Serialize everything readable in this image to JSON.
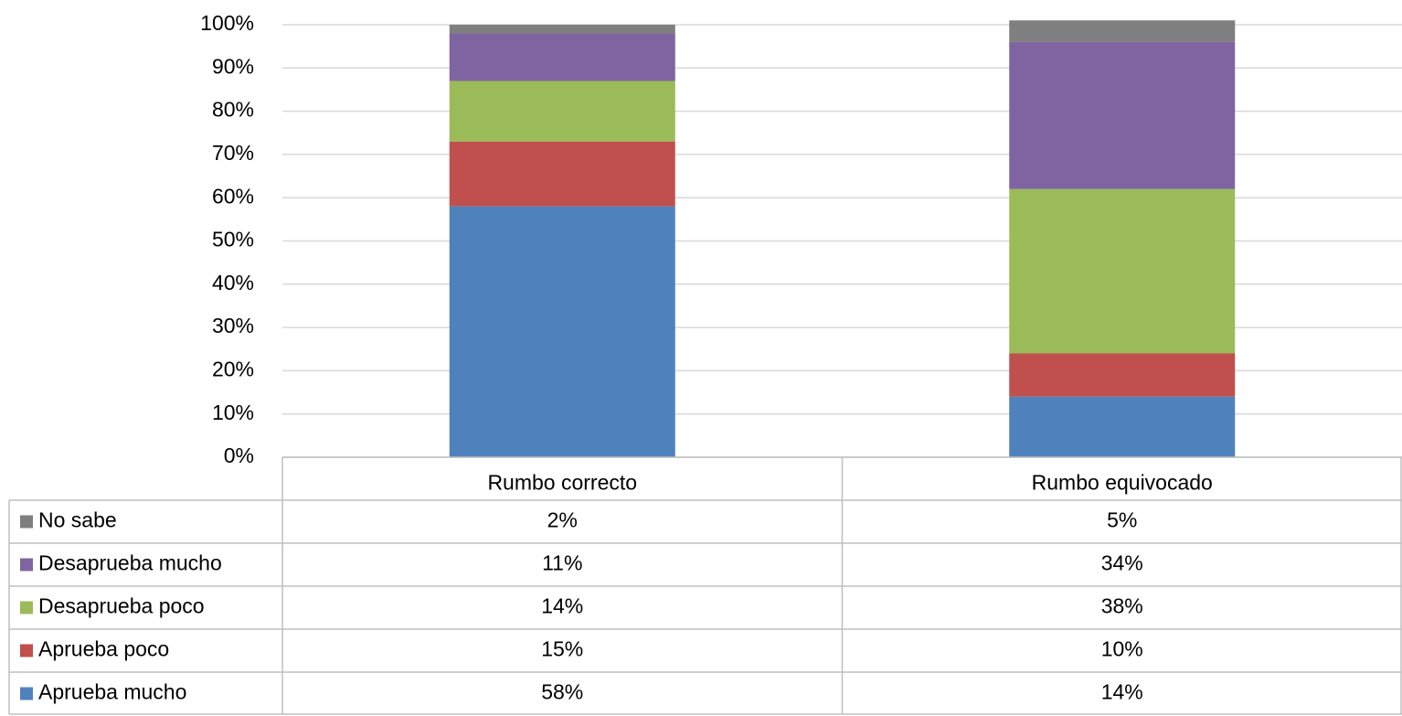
{
  "chart_data": {
    "type": "bar",
    "categories": [
      "Rumbo correcto",
      "Rumbo equivocado"
    ],
    "series": [
      {
        "name": "Aprueba mucho",
        "color": "#4f81bd",
        "values": [
          58,
          14
        ],
        "value_labels": [
          "58%",
          "14%"
        ]
      },
      {
        "name": "Aprueba poco",
        "color": "#c0504d",
        "values": [
          15,
          10
        ],
        "value_labels": [
          "15%",
          "10%"
        ]
      },
      {
        "name": "Desaprueba poco",
        "color": "#9bbb59",
        "values": [
          14,
          38
        ],
        "value_labels": [
          "14%",
          "38%"
        ]
      },
      {
        "name": "Desaprueba mucho",
        "color": "#8064a2",
        "values": [
          11,
          34
        ],
        "value_labels": [
          "11%",
          "34%"
        ]
      },
      {
        "name": "No sabe",
        "color": "#7f7f7f",
        "values": [
          2,
          5
        ],
        "value_labels": [
          "2%",
          "5%"
        ]
      }
    ],
    "stacked": true,
    "ylim": [
      0,
      100
    ],
    "yticks": [
      {
        "value": 0,
        "label": "0%"
      },
      {
        "value": 10,
        "label": "10%"
      },
      {
        "value": 20,
        "label": "20%"
      },
      {
        "value": 30,
        "label": "30%"
      },
      {
        "value": 40,
        "label": "40%"
      },
      {
        "value": 50,
        "label": "50%"
      },
      {
        "value": 60,
        "label": "60%"
      },
      {
        "value": 70,
        "label": "70%"
      },
      {
        "value": 80,
        "label": "80%"
      },
      {
        "value": 90,
        "label": "90%"
      },
      {
        "value": 100,
        "label": "100%"
      }
    ],
    "grid": true
  }
}
